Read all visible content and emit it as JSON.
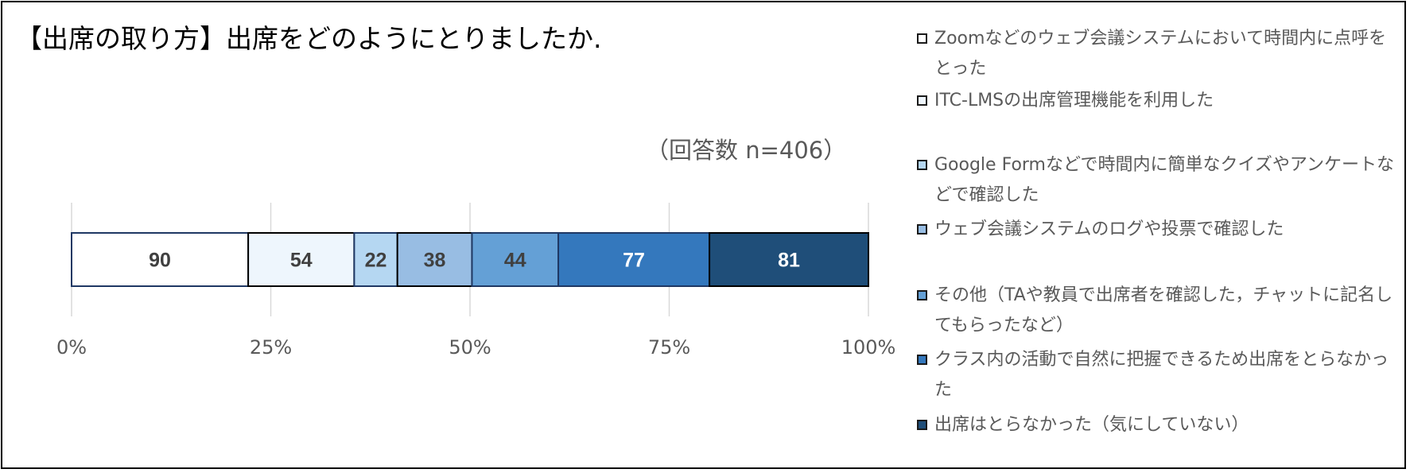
{
  "chart_data": {
    "type": "bar",
    "orientation": "horizontal-stacked-100",
    "title": "【出席の取り方】出席をどのようにとりましたか.",
    "annotation": "（回答数 n=406）",
    "xlim": [
      0,
      100
    ],
    "x_ticks": [
      "0%",
      "25%",
      "50%",
      "75%",
      "100%"
    ],
    "grid": true,
    "legend_position": "right",
    "series": [
      {
        "name": "Zoomなどのウェブ会議システムにおいて時間内に点呼をとった",
        "value": 90,
        "color": "#ffffff",
        "border": "#1f3864",
        "label_color": "#404040"
      },
      {
        "name": "ITC-LMSの出席管理機能を利用した",
        "value": 54,
        "color": "#eef6fd",
        "border": "#000000",
        "label_color": "#404040"
      },
      {
        "name": "Google Formなどで時間内に簡単なクイズやアンケートなどで確認した",
        "value": 22,
        "color": "#b5d7f2",
        "border": "#1f3864",
        "label_color": "#404040"
      },
      {
        "name": "ウェブ会議システムのログや投票で確認した",
        "value": 38,
        "color": "#98bde3",
        "border": "#000000",
        "label_color": "#404040"
      },
      {
        "name": "その他（TAや教員で出席者を確認した，チャットに記名してもらったなど）",
        "value": 44,
        "color": "#64a0d6",
        "border": "#1f3864",
        "label_color": "#404040"
      },
      {
        "name": "クラス内の活動で自然に把握できるため出席をとらなかった",
        "value": 77,
        "color": "#3478bd",
        "border": "#1f3864",
        "label_color": "#ffffff"
      },
      {
        "name": "出席はとらなかった（気にしていない）",
        "value": 81,
        "color": "#1f4e79",
        "border": "#000000",
        "label_color": "#ffffff"
      }
    ]
  }
}
